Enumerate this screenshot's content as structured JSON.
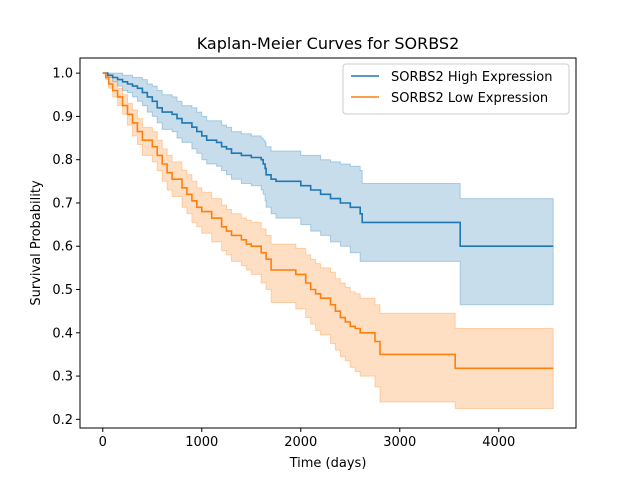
{
  "chart_data": {
    "type": "line",
    "step": true,
    "title": "Kaplan-Meier Curves for SORBS2",
    "xlabel": "Time (days)",
    "ylabel": "Survival Probability",
    "xlim": [
      -230,
      4780
    ],
    "ylim": [
      0.18,
      1.035
    ],
    "xticks": [
      0,
      1000,
      2000,
      3000,
      4000
    ],
    "yticks": [
      0.2,
      0.3,
      0.4,
      0.5,
      0.6,
      0.7,
      0.8,
      0.9,
      1.0
    ],
    "xtick_labels": [
      "0",
      "1000",
      "2000",
      "3000",
      "4000"
    ],
    "ytick_labels": [
      "0.2",
      "0.3",
      "0.4",
      "0.5",
      "0.6",
      "0.7",
      "0.8",
      "0.9",
      "1.0"
    ],
    "grid": false,
    "legend_position": "top-right",
    "series": [
      {
        "name": "SORBS2 High Expression",
        "color": "#1f77b4",
        "band_color": "#1f77b4",
        "points": [
          [
            0,
            1.0
          ],
          [
            50,
            0.995
          ],
          [
            100,
            0.99
          ],
          [
            150,
            0.985
          ],
          [
            200,
            0.98
          ],
          [
            250,
            0.975
          ],
          [
            300,
            0.97
          ],
          [
            350,
            0.965
          ],
          [
            400,
            0.955
          ],
          [
            450,
            0.945
          ],
          [
            500,
            0.935
          ],
          [
            550,
            0.92
          ],
          [
            600,
            0.91
          ],
          [
            700,
            0.905
          ],
          [
            750,
            0.895
          ],
          [
            800,
            0.885
          ],
          [
            900,
            0.875
          ],
          [
            950,
            0.865
          ],
          [
            1000,
            0.855
          ],
          [
            1050,
            0.845
          ],
          [
            1150,
            0.84
          ],
          [
            1200,
            0.83
          ],
          [
            1250,
            0.825
          ],
          [
            1300,
            0.815
          ],
          [
            1400,
            0.81
          ],
          [
            1500,
            0.805
          ],
          [
            1600,
            0.8
          ],
          [
            1620,
            0.79
          ],
          [
            1640,
            0.78
          ],
          [
            1650,
            0.765
          ],
          [
            1700,
            0.755
          ],
          [
            1750,
            0.75
          ],
          [
            2000,
            0.74
          ],
          [
            2100,
            0.73
          ],
          [
            2200,
            0.72
          ],
          [
            2300,
            0.71
          ],
          [
            2400,
            0.7
          ],
          [
            2500,
            0.69
          ],
          [
            2600,
            0.675
          ],
          [
            2620,
            0.655
          ],
          [
            3600,
            0.655
          ],
          [
            3610,
            0.6
          ],
          [
            4550,
            0.6
          ]
        ],
        "lower": [
          [
            0,
            1.0
          ],
          [
            50,
            0.99
          ],
          [
            100,
            0.98
          ],
          [
            150,
            0.97
          ],
          [
            200,
            0.96
          ],
          [
            250,
            0.955
          ],
          [
            300,
            0.945
          ],
          [
            350,
            0.935
          ],
          [
            400,
            0.925
          ],
          [
            450,
            0.91
          ],
          [
            500,
            0.9
          ],
          [
            550,
            0.885
          ],
          [
            600,
            0.87
          ],
          [
            700,
            0.865
          ],
          [
            750,
            0.85
          ],
          [
            800,
            0.84
          ],
          [
            900,
            0.825
          ],
          [
            950,
            0.815
          ],
          [
            1000,
            0.8
          ],
          [
            1050,
            0.79
          ],
          [
            1150,
            0.785
          ],
          [
            1200,
            0.775
          ],
          [
            1250,
            0.765
          ],
          [
            1300,
            0.755
          ],
          [
            1400,
            0.745
          ],
          [
            1500,
            0.74
          ],
          [
            1600,
            0.73
          ],
          [
            1620,
            0.72
          ],
          [
            1640,
            0.705
          ],
          [
            1650,
            0.69
          ],
          [
            1700,
            0.675
          ],
          [
            1750,
            0.665
          ],
          [
            2000,
            0.65
          ],
          [
            2100,
            0.635
          ],
          [
            2200,
            0.625
          ],
          [
            2300,
            0.61
          ],
          [
            2400,
            0.6
          ],
          [
            2500,
            0.585
          ],
          [
            2600,
            0.565
          ],
          [
            2620,
            0.565
          ],
          [
            3600,
            0.565
          ],
          [
            3610,
            0.465
          ],
          [
            4550,
            0.465
          ]
        ],
        "upper": [
          [
            0,
            1.0
          ],
          [
            50,
            1.0
          ],
          [
            100,
            1.0
          ],
          [
            150,
            1.0
          ],
          [
            200,
            0.995
          ],
          [
            250,
            0.995
          ],
          [
            300,
            0.99
          ],
          [
            350,
            0.99
          ],
          [
            400,
            0.985
          ],
          [
            450,
            0.975
          ],
          [
            500,
            0.97
          ],
          [
            550,
            0.96
          ],
          [
            600,
            0.95
          ],
          [
            700,
            0.945
          ],
          [
            750,
            0.935
          ],
          [
            800,
            0.925
          ],
          [
            900,
            0.92
          ],
          [
            950,
            0.91
          ],
          [
            1000,
            0.9
          ],
          [
            1050,
            0.89
          ],
          [
            1150,
            0.89
          ],
          [
            1200,
            0.88
          ],
          [
            1250,
            0.875
          ],
          [
            1300,
            0.865
          ],
          [
            1400,
            0.86
          ],
          [
            1500,
            0.855
          ],
          [
            1600,
            0.85
          ],
          [
            1620,
            0.845
          ],
          [
            1640,
            0.84
          ],
          [
            1650,
            0.83
          ],
          [
            1700,
            0.82
          ],
          [
            1750,
            0.82
          ],
          [
            2000,
            0.81
          ],
          [
            2100,
            0.81
          ],
          [
            2200,
            0.8
          ],
          [
            2300,
            0.795
          ],
          [
            2400,
            0.79
          ],
          [
            2500,
            0.785
          ],
          [
            2600,
            0.775
          ],
          [
            2620,
            0.745
          ],
          [
            3600,
            0.745
          ],
          [
            3610,
            0.71
          ],
          [
            4550,
            0.71
          ]
        ]
      },
      {
        "name": "SORBS2 Low Expression",
        "color": "#ff7f0e",
        "band_color": "#ff7f0e",
        "points": [
          [
            0,
            1.0
          ],
          [
            30,
            0.99
          ],
          [
            60,
            0.975
          ],
          [
            100,
            0.96
          ],
          [
            150,
            0.945
          ],
          [
            200,
            0.925
          ],
          [
            250,
            0.905
          ],
          [
            300,
            0.885
          ],
          [
            350,
            0.865
          ],
          [
            400,
            0.845
          ],
          [
            500,
            0.83
          ],
          [
            550,
            0.81
          ],
          [
            600,
            0.79
          ],
          [
            650,
            0.77
          ],
          [
            700,
            0.755
          ],
          [
            800,
            0.735
          ],
          [
            850,
            0.72
          ],
          [
            900,
            0.705
          ],
          [
            950,
            0.69
          ],
          [
            1000,
            0.68
          ],
          [
            1100,
            0.665
          ],
          [
            1200,
            0.645
          ],
          [
            1250,
            0.635
          ],
          [
            1300,
            0.625
          ],
          [
            1400,
            0.615
          ],
          [
            1450,
            0.605
          ],
          [
            1500,
            0.6
          ],
          [
            1600,
            0.585
          ],
          [
            1650,
            0.57
          ],
          [
            1700,
            0.545
          ],
          [
            1750,
            0.545
          ],
          [
            1950,
            0.535
          ],
          [
            2050,
            0.515
          ],
          [
            2100,
            0.5
          ],
          [
            2150,
            0.49
          ],
          [
            2200,
            0.48
          ],
          [
            2300,
            0.465
          ],
          [
            2350,
            0.45
          ],
          [
            2400,
            0.435
          ],
          [
            2450,
            0.425
          ],
          [
            2500,
            0.415
          ],
          [
            2550,
            0.41
          ],
          [
            2600,
            0.4
          ],
          [
            2750,
            0.38
          ],
          [
            2800,
            0.35
          ],
          [
            3550,
            0.35
          ],
          [
            3560,
            0.318
          ],
          [
            4550,
            0.318
          ]
        ],
        "lower": [
          [
            0,
            1.0
          ],
          [
            30,
            0.985
          ],
          [
            60,
            0.965
          ],
          [
            100,
            0.945
          ],
          [
            150,
            0.925
          ],
          [
            200,
            0.905
          ],
          [
            250,
            0.88
          ],
          [
            300,
            0.855
          ],
          [
            350,
            0.835
          ],
          [
            400,
            0.81
          ],
          [
            500,
            0.795
          ],
          [
            550,
            0.775
          ],
          [
            600,
            0.75
          ],
          [
            650,
            0.73
          ],
          [
            700,
            0.715
          ],
          [
            800,
            0.69
          ],
          [
            850,
            0.675
          ],
          [
            900,
            0.655
          ],
          [
            950,
            0.645
          ],
          [
            1000,
            0.63
          ],
          [
            1100,
            0.61
          ],
          [
            1200,
            0.59
          ],
          [
            1250,
            0.58
          ],
          [
            1300,
            0.565
          ],
          [
            1400,
            0.555
          ],
          [
            1450,
            0.545
          ],
          [
            1500,
            0.535
          ],
          [
            1600,
            0.515
          ],
          [
            1650,
            0.5
          ],
          [
            1700,
            0.47
          ],
          [
            1750,
            0.47
          ],
          [
            1950,
            0.455
          ],
          [
            2050,
            0.435
          ],
          [
            2100,
            0.42
          ],
          [
            2150,
            0.405
          ],
          [
            2200,
            0.395
          ],
          [
            2300,
            0.375
          ],
          [
            2350,
            0.36
          ],
          [
            2400,
            0.345
          ],
          [
            2450,
            0.335
          ],
          [
            2500,
            0.32
          ],
          [
            2550,
            0.31
          ],
          [
            2600,
            0.3
          ],
          [
            2750,
            0.275
          ],
          [
            2800,
            0.24
          ],
          [
            3550,
            0.24
          ],
          [
            3560,
            0.225
          ],
          [
            4550,
            0.225
          ]
        ],
        "upper": [
          [
            0,
            1.0
          ],
          [
            30,
            1.0
          ],
          [
            60,
            0.99
          ],
          [
            100,
            0.98
          ],
          [
            150,
            0.965
          ],
          [
            200,
            0.95
          ],
          [
            250,
            0.93
          ],
          [
            300,
            0.915
          ],
          [
            350,
            0.895
          ],
          [
            400,
            0.875
          ],
          [
            500,
            0.865
          ],
          [
            550,
            0.845
          ],
          [
            600,
            0.825
          ],
          [
            650,
            0.81
          ],
          [
            700,
            0.795
          ],
          [
            800,
            0.775
          ],
          [
            850,
            0.765
          ],
          [
            900,
            0.75
          ],
          [
            950,
            0.735
          ],
          [
            1000,
            0.725
          ],
          [
            1100,
            0.71
          ],
          [
            1200,
            0.695
          ],
          [
            1250,
            0.685
          ],
          [
            1300,
            0.675
          ],
          [
            1400,
            0.665
          ],
          [
            1450,
            0.66
          ],
          [
            1500,
            0.655
          ],
          [
            1600,
            0.64
          ],
          [
            1650,
            0.625
          ],
          [
            1700,
            0.605
          ],
          [
            1750,
            0.605
          ],
          [
            1950,
            0.595
          ],
          [
            2050,
            0.58
          ],
          [
            2100,
            0.57
          ],
          [
            2150,
            0.56
          ],
          [
            2200,
            0.55
          ],
          [
            2300,
            0.54
          ],
          [
            2350,
            0.525
          ],
          [
            2400,
            0.515
          ],
          [
            2450,
            0.505
          ],
          [
            2500,
            0.495
          ],
          [
            2550,
            0.49
          ],
          [
            2600,
            0.48
          ],
          [
            2750,
            0.465
          ],
          [
            2800,
            0.445
          ],
          [
            3550,
            0.445
          ],
          [
            3560,
            0.41
          ],
          [
            4550,
            0.41
          ]
        ]
      }
    ]
  }
}
